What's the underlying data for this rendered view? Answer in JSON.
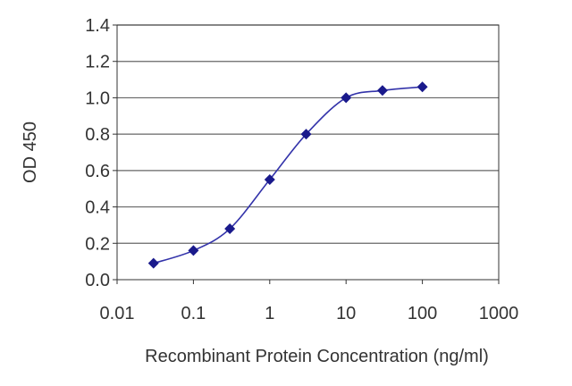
{
  "chart_data": {
    "type": "line",
    "xscale": "log",
    "xlabel": "Recombinant Protein Concentration (ng/ml)",
    "ylabel": "OD 450",
    "xlim": [
      0.01,
      1000
    ],
    "ylim": [
      0,
      1.4
    ],
    "xticks": [
      0.01,
      0.1,
      1,
      10,
      100,
      1000
    ],
    "xtick_labels": [
      "0.01",
      "0.1",
      "1",
      "10",
      "100",
      "1000"
    ],
    "yticks": [
      0,
      0.2,
      0.4,
      0.6,
      0.8,
      1.0,
      1.2,
      1.4
    ],
    "ytick_labels": [
      "0.0",
      "0.2",
      "0.4",
      "0.6",
      "0.8",
      "1.0",
      "1.2",
      "1.4"
    ],
    "grid": "horizontal",
    "series": [
      {
        "x": [
          0.03,
          0.1,
          0.3,
          1,
          3,
          10,
          30,
          100
        ],
        "y": [
          0.09,
          0.16,
          0.28,
          0.55,
          0.8,
          1.0,
          1.04,
          1.06
        ]
      }
    ],
    "colors": {
      "line": "#3333aa",
      "marker": "#1a1a8c",
      "grid": "#666666"
    }
  }
}
